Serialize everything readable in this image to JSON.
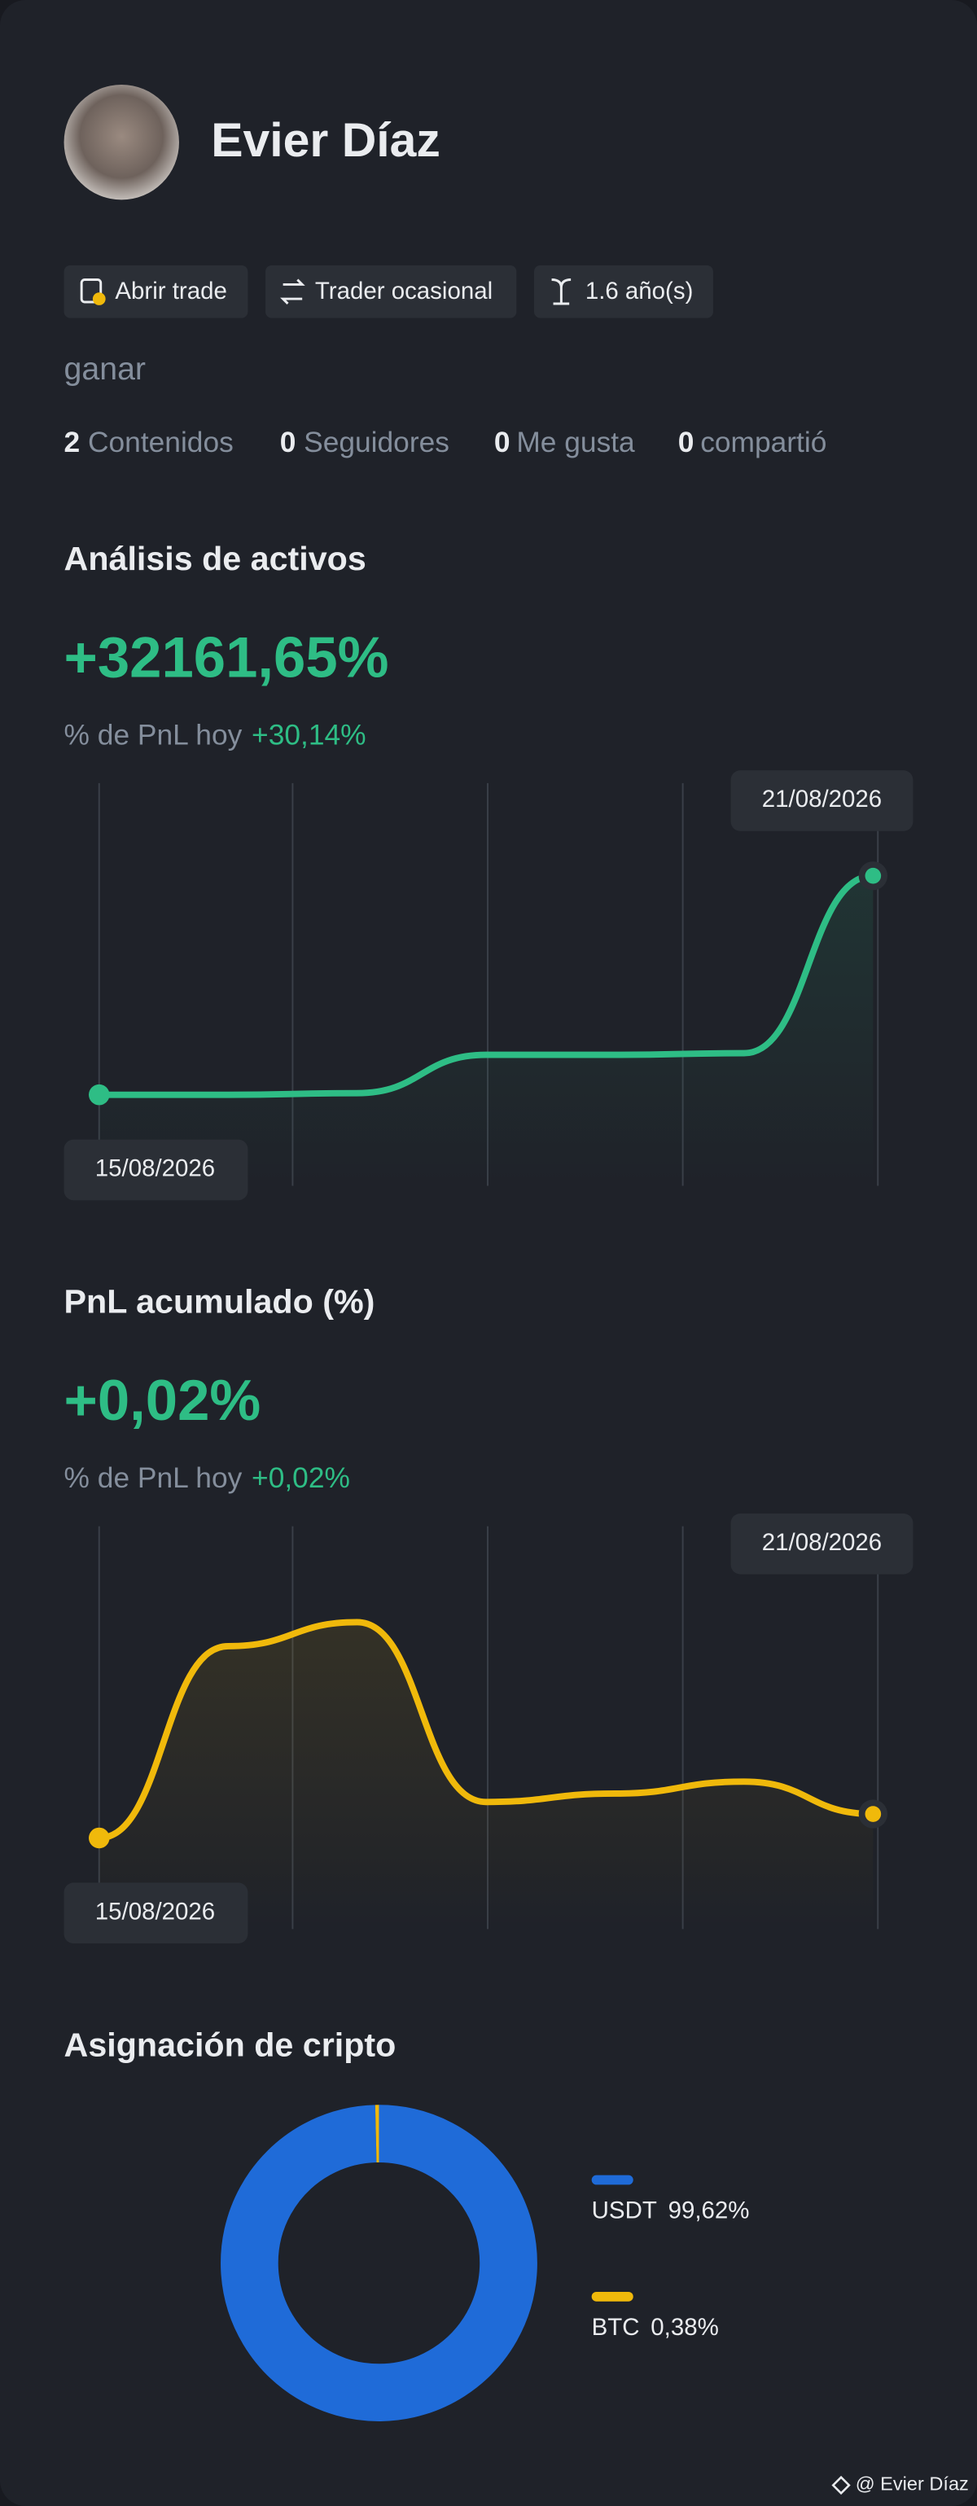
{
  "profile": {
    "name": "Evier Díaz",
    "tags": [
      "Abrir trade",
      "Trader ocasional",
      "1.6 año(s)"
    ],
    "bio": "ganar",
    "stats": [
      {
        "value": 2,
        "label": "Contenidos"
      },
      {
        "value": 0,
        "label": "Seguidores"
      },
      {
        "value": 0,
        "label": "Me gusta"
      },
      {
        "value": 0,
        "label": "compartió"
      }
    ]
  },
  "chart_data": [
    {
      "type": "line",
      "title": "Análisis de activos",
      "headline": "+32161,65%",
      "today_label": "% de PnL hoy",
      "today_value": "+30,14%",
      "categories": [
        "15/08/2026",
        null,
        null,
        null,
        null,
        null,
        "21/08/2026"
      ],
      "series": [
        {
          "color": "#2ebd85",
          "values": [
            0,
            0,
            235,
            5870,
            5870,
            6105,
            32161.65
          ]
        }
      ]
    },
    {
      "type": "line",
      "title": "PnL acumulado (%)",
      "headline": "+0,02%",
      "today_label": "% de PnL hoy",
      "today_value": "+0,02%",
      "categories": [
        "15/08/2026",
        null,
        null,
        null,
        null,
        null,
        "21/08/2026"
      ],
      "series": [
        {
          "color": "#f0b90b",
          "values": [
            0,
            0.16,
            0.18,
            0.03,
            0.037,
            0.047,
            0.02
          ]
        }
      ]
    },
    {
      "type": "pie",
      "title": "Asignación de cripto",
      "categories": [
        "USDT",
        "BTC"
      ],
      "values": [
        99.62,
        0.38
      ],
      "value_labels": [
        "99,62%",
        "0,38%"
      ],
      "colors": [
        "#1f6bd8",
        "#f0b90b"
      ]
    }
  ],
  "footer": "@ Evier Díaz"
}
